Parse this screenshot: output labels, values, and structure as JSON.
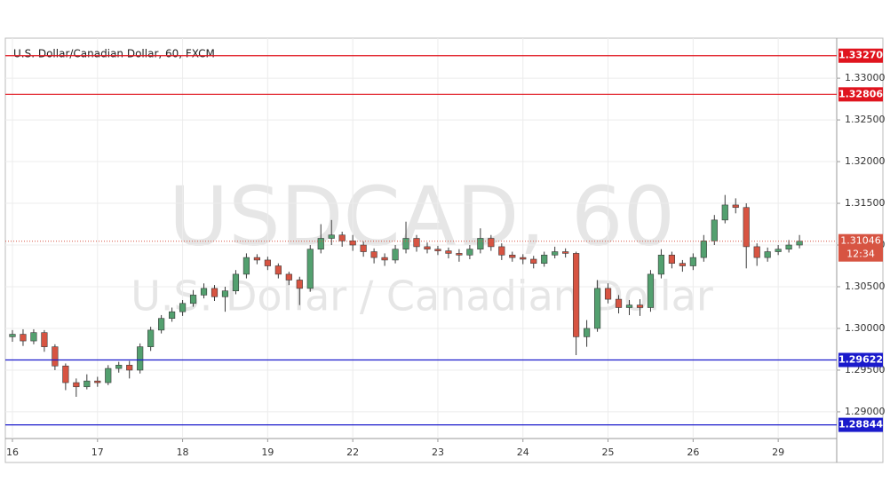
{
  "chart_data": {
    "type": "candlestick",
    "title": "U.S. Dollar/Canadian Dollar, 60, FXCM",
    "watermark": "USDCAD, 60",
    "watermark_subtitle": "U.S. Dollar / Canadian Dollar",
    "up_color": "#53a06f",
    "down_color": "#d75442",
    "open": [
      1.299,
      1.2993,
      1.2985,
      1.2995,
      1.2978,
      1.2955,
      1.2935,
      1.293,
      1.2937,
      1.2935,
      1.2952,
      1.2956,
      1.295,
      1.2978,
      1.2998,
      1.3012,
      1.302,
      1.303,
      1.304,
      1.3048,
      1.3038,
      1.3045,
      1.3065,
      1.3085,
      1.3082,
      1.3075,
      1.3065,
      1.3058,
      1.3048,
      1.3095,
      1.3108,
      1.3112,
      1.3105,
      1.31,
      1.3092,
      1.3085,
      1.3082,
      1.3095,
      1.3108,
      1.3098,
      1.3095,
      1.3093,
      1.309,
      1.3088,
      1.3095,
      1.3108,
      1.3098,
      1.3088,
      1.3085,
      1.3083,
      1.3078,
      1.3088,
      1.3092,
      1.309,
      1.299,
      1.3,
      1.3048,
      1.3035,
      1.3025,
      1.3028,
      1.3025,
      1.3065,
      1.3088,
      1.3078,
      1.3075,
      1.3085,
      1.3105,
      1.313,
      1.3148,
      1.3145,
      1.3098,
      1.3085,
      1.3092,
      1.3095,
      1.31
    ],
    "high": [
      1.2998,
      1.2999,
      1.2999,
      1.2998,
      1.2981,
      1.2958,
      1.294,
      1.2945,
      1.2942,
      1.2956,
      1.296,
      1.2961,
      1.2982,
      1.3002,
      1.3016,
      1.3025,
      1.3034,
      1.3046,
      1.3054,
      1.3052,
      1.305,
      1.307,
      1.309,
      1.3089,
      1.3086,
      1.3078,
      1.3068,
      1.3062,
      1.31,
      1.3125,
      1.313,
      1.3116,
      1.3112,
      1.3104,
      1.3096,
      1.309,
      1.31,
      1.3128,
      1.3112,
      1.3103,
      1.3099,
      1.3097,
      1.3095,
      1.31,
      1.312,
      1.3112,
      1.3102,
      1.3092,
      1.3089,
      1.3087,
      1.3092,
      1.3098,
      1.3096,
      1.3092,
      1.301,
      1.3058,
      1.3054,
      1.304,
      1.3034,
      1.3035,
      1.307,
      1.3095,
      1.3092,
      1.3082,
      1.309,
      1.3112,
      1.3136,
      1.316,
      1.3156,
      1.315,
      1.3102,
      1.3097,
      1.31,
      1.3106,
      1.3112
    ],
    "low": [
      1.2984,
      1.2979,
      1.2981,
      1.2972,
      1.295,
      1.2926,
      1.2918,
      1.2927,
      1.293,
      1.2932,
      1.2947,
      1.294,
      1.2946,
      1.2973,
      1.2994,
      1.3008,
      1.3015,
      1.3026,
      1.3036,
      1.3033,
      1.302,
      1.3041,
      1.306,
      1.3077,
      1.307,
      1.306,
      1.3052,
      1.3028,
      1.3044,
      1.309,
      1.31,
      1.3098,
      1.3093,
      1.3086,
      1.3078,
      1.3075,
      1.3078,
      1.309,
      1.3092,
      1.309,
      1.3088,
      1.3084,
      1.308,
      1.3083,
      1.309,
      1.3093,
      1.3082,
      1.308,
      1.3077,
      1.3072,
      1.3074,
      1.3084,
      1.3085,
      1.2968,
      1.2978,
      1.2996,
      1.303,
      1.3018,
      1.3016,
      1.3015,
      1.302,
      1.306,
      1.3072,
      1.3068,
      1.307,
      1.308,
      1.31,
      1.3126,
      1.3138,
      1.3072,
      1.3075,
      1.308,
      1.3088,
      1.3091,
      1.3096
    ],
    "close": [
      1.2993,
      1.2985,
      1.2995,
      1.2978,
      1.2955,
      1.2935,
      1.293,
      1.2937,
      1.2935,
      1.2952,
      1.2956,
      1.295,
      1.2978,
      1.2998,
      1.3012,
      1.302,
      1.303,
      1.304,
      1.3048,
      1.3038,
      1.3045,
      1.3065,
      1.3085,
      1.3082,
      1.3075,
      1.3065,
      1.3058,
      1.3048,
      1.3095,
      1.3108,
      1.3112,
      1.3105,
      1.31,
      1.3092,
      1.3085,
      1.3082,
      1.3095,
      1.3108,
      1.3098,
      1.3095,
      1.3093,
      1.309,
      1.3088,
      1.3095,
      1.3108,
      1.3098,
      1.3088,
      1.3085,
      1.3083,
      1.3078,
      1.3088,
      1.3092,
      1.309,
      1.299,
      1.3,
      1.3048,
      1.3035,
      1.3025,
      1.3028,
      1.3025,
      1.3065,
      1.3088,
      1.3078,
      1.3075,
      1.3085,
      1.3105,
      1.313,
      1.3148,
      1.3145,
      1.3098,
      1.3085,
      1.3092,
      1.3095,
      1.31,
      1.31046
    ],
    "xlim": [
      -0.5,
      77.5
    ],
    "xticks": [
      {
        "value": 0,
        "label": "16"
      },
      {
        "value": 8,
        "label": "17"
      },
      {
        "value": 16,
        "label": "18"
      },
      {
        "value": 24,
        "label": "19"
      },
      {
        "value": 32,
        "label": "22"
      },
      {
        "value": 40,
        "label": "23"
      },
      {
        "value": 48,
        "label": "24"
      },
      {
        "value": 56,
        "label": "25"
      },
      {
        "value": 64,
        "label": "26"
      },
      {
        "value": 72,
        "label": "29"
      }
    ],
    "ylim": [
      1.2868,
      1.3348
    ],
    "yticks": [
      {
        "value": 1.29,
        "label": "1.29000"
      },
      {
        "value": 1.295,
        "label": "1.29500"
      },
      {
        "value": 1.3,
        "label": "1.30000"
      },
      {
        "value": 1.305,
        "label": "1.30500"
      },
      {
        "value": 1.31,
        "label": "1.31000"
      },
      {
        "value": 1.315,
        "label": "1.31500"
      },
      {
        "value": 1.32,
        "label": "1.32000"
      },
      {
        "value": 1.325,
        "label": "1.32500"
      },
      {
        "value": 1.33,
        "label": "1.33000"
      }
    ],
    "grid": true,
    "levels": [
      {
        "value": 1.3327,
        "label": "1.33270",
        "color": "#e0141e"
      },
      {
        "value": 1.32806,
        "label": "1.32806",
        "color": "#e0141e"
      },
      {
        "value": 1.29622,
        "label": "1.29622",
        "color": "#1a1acc"
      },
      {
        "value": 1.28844,
        "label": "1.28844",
        "color": "#1a1acc"
      }
    ],
    "last_price": {
      "value": 1.31046,
      "label": "1.31046",
      "countdown": "12:34",
      "color": "#d75442"
    }
  }
}
